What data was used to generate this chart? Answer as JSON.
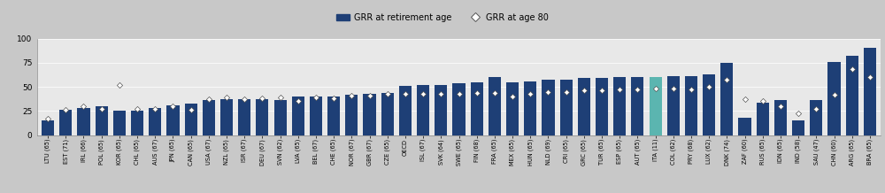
{
  "categories": [
    "LTU (65)",
    "EST (71)",
    "IRL (66)",
    "POL (65)",
    "KOR (65)",
    "CHL (65)",
    "AUS (67)",
    "JPN (65)",
    "CAN (65)",
    "USA (67)",
    "NZL (65)",
    "ISR (67)",
    "DEU (67)",
    "SVN (62)",
    "LVA (65)",
    "BEL (67)",
    "CHE (65)",
    "NOR (67)",
    "GBR (67)",
    "CZE (65)",
    "OECD",
    "ISL (67)",
    "SVK (64)",
    "SWE (65)",
    "FIN (68)",
    "FRA (65)",
    "MEX (65)",
    "HUN (65)",
    "NLD (69)",
    "CRI (65)",
    "GRC (65)",
    "TUR (65)",
    "ESP (65)",
    "AUT (65)",
    "ITA (11)",
    "COL (62)",
    "PRY (68)",
    "LUX (62)",
    "DNK (74)",
    "ZAF (60)",
    "RUS (65)",
    "IDN (65)",
    "IND (58)",
    "SAU (47)",
    "CHN (60)",
    "ARG (65)",
    "BRA (65)"
  ],
  "bar_values": [
    15,
    26,
    28,
    30,
    25,
    25,
    28,
    31,
    33,
    36,
    37,
    37,
    37,
    36,
    40,
    40,
    40,
    42,
    43,
    44,
    51,
    52,
    52,
    54,
    55,
    60,
    55,
    56,
    57,
    57,
    59,
    59,
    60,
    60,
    60,
    61,
    61,
    63,
    75,
    18,
    34,
    36,
    15,
    36,
    76,
    82,
    90
  ],
  "diamond_values": [
    17,
    26,
    30,
    27,
    52,
    27,
    27,
    30,
    26,
    37,
    39,
    37,
    38,
    39,
    35,
    39,
    38,
    41,
    41,
    43,
    43,
    43,
    43,
    43,
    44,
    44,
    40,
    43,
    45,
    45,
    46,
    46,
    47,
    47,
    48,
    48,
    47,
    50,
    57,
    37,
    35,
    30,
    23,
    27,
    42,
    68,
    60
  ],
  "bar_colors": [
    "#1e3f76",
    "#1e3f76",
    "#1e3f76",
    "#1e3f76",
    "#1e3f76",
    "#1e3f76",
    "#1e3f76",
    "#1e3f76",
    "#1e3f76",
    "#1e3f76",
    "#1e3f76",
    "#1e3f76",
    "#1e3f76",
    "#1e3f76",
    "#1e3f76",
    "#1e3f76",
    "#1e3f76",
    "#1e3f76",
    "#1e3f76",
    "#1e3f76",
    "#1e3f76",
    "#1e3f76",
    "#1e3f76",
    "#1e3f76",
    "#1e3f76",
    "#1e3f76",
    "#1e3f76",
    "#1e3f76",
    "#1e3f76",
    "#1e3f76",
    "#1e3f76",
    "#1e3f76",
    "#1e3f76",
    "#1e3f76",
    "#5bb5b0",
    "#1e3f76",
    "#1e3f76",
    "#1e3f76",
    "#1e3f76",
    "#1e3f76",
    "#1e3f76",
    "#1e3f76",
    "#1e3f76",
    "#1e3f76",
    "#1e3f76",
    "#1e3f76",
    "#1e3f76"
  ],
  "ylim": [
    0,
    100
  ],
  "yticks": [
    0,
    25,
    50,
    75,
    100
  ],
  "header_color": "#c8c8c8",
  "plot_bg_color": "#e8e8e8",
  "fig_bg_color": "#c8c8c8",
  "bar_width": 0.7,
  "legend_bar_color": "#1e3f76",
  "diamond_color": "white",
  "diamond_edge_color": "#555555",
  "xlabel_fontsize": 4.8,
  "ylabel_fontsize": 6.5,
  "legend_fontsize": 7.0,
  "diamond_size": 10
}
